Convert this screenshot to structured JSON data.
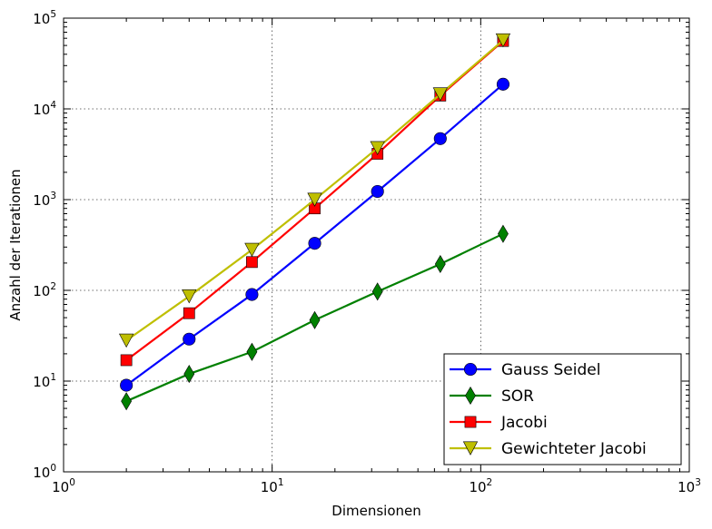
{
  "chart_data": {
    "type": "line",
    "title": "",
    "xlabel": "Dimensionen",
    "ylabel": "Anzahl der Iterationen",
    "xscale": "log",
    "yscale": "log",
    "xlim": [
      1,
      1000
    ],
    "ylim": [
      1,
      100000
    ],
    "grid": true,
    "legend_position": "lower-right",
    "x_ticks": [
      {
        "base": "10",
        "exp": "0",
        "value": 1
      },
      {
        "base": "10",
        "exp": "1",
        "value": 10
      },
      {
        "base": "10",
        "exp": "2",
        "value": 100
      },
      {
        "base": "10",
        "exp": "3",
        "value": 1000
      }
    ],
    "y_ticks": [
      {
        "base": "10",
        "exp": "0",
        "value": 1
      },
      {
        "base": "10",
        "exp": "1",
        "value": 10
      },
      {
        "base": "10",
        "exp": "2",
        "value": 100
      },
      {
        "base": "10",
        "exp": "3",
        "value": 1000
      },
      {
        "base": "10",
        "exp": "4",
        "value": 10000
      },
      {
        "base": "10",
        "exp": "5",
        "value": 100000
      }
    ],
    "x": [
      2,
      4,
      8,
      16,
      32,
      64,
      128
    ],
    "series": [
      {
        "name": "Gauss Seidel",
        "color": "#0000ff",
        "marker": "circle",
        "values": [
          9,
          29,
          90,
          330,
          1230,
          4700,
          18700
        ]
      },
      {
        "name": "SOR",
        "color": "#008000",
        "marker": "diamond",
        "values": [
          6,
          12,
          21,
          47,
          97,
          195,
          420
        ]
      },
      {
        "name": "Jacobi",
        "color": "#ff0000",
        "marker": "square",
        "values": [
          17,
          56,
          205,
          800,
          3200,
          14000,
          56000
        ]
      },
      {
        "name": "Gewichteter Jacobi",
        "color": "#bfbf00",
        "marker": "triangle-down",
        "values": [
          28,
          86,
          280,
          1000,
          3700,
          14500,
          57000
        ]
      }
    ]
  }
}
